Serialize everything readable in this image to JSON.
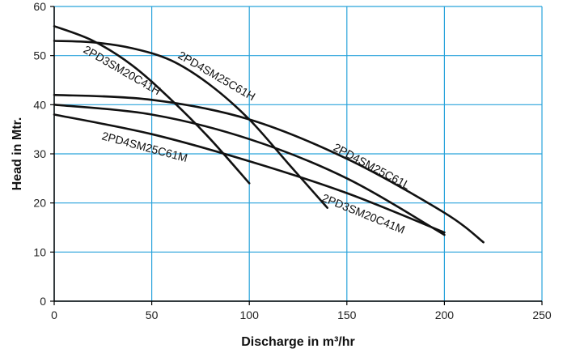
{
  "chart_data": {
    "type": "line",
    "title": "",
    "xlabel": "Discharge in m³/hr",
    "ylabel": "Head in Mtr.",
    "xlim": [
      0,
      250
    ],
    "ylim": [
      0,
      60
    ],
    "xticks": [
      0,
      50,
      100,
      150,
      200,
      250
    ],
    "yticks": [
      0,
      10,
      20,
      30,
      40,
      50,
      60
    ],
    "grid": true,
    "grid_color": "#29a3db",
    "line_color": "#111111",
    "series": [
      {
        "name": "2PD3SM20C41H",
        "x": [
          0,
          20,
          40,
          60,
          80,
          100
        ],
        "y": [
          56,
          53,
          48,
          41,
          33,
          24
        ]
      },
      {
        "name": "2PD4SM25C61H",
        "x": [
          0,
          20,
          40,
          60,
          80,
          100,
          120,
          140
        ],
        "y": [
          53,
          52.7,
          51.5,
          49,
          44,
          37,
          28,
          19
        ]
      },
      {
        "name": "2PD4SM25C61L",
        "x": [
          0,
          50,
          100,
          150,
          200,
          220
        ],
        "y": [
          42,
          41,
          37,
          29,
          18,
          12
        ]
      },
      {
        "name": "2PD3SM20C41M",
        "x": [
          0,
          50,
          100,
          150,
          200
        ],
        "y": [
          40,
          38,
          33,
          25,
          13.5
        ]
      },
      {
        "name": "2PD4SM25C61M",
        "x": [
          0,
          50,
          100,
          150,
          200
        ],
        "y": [
          38,
          34,
          28.5,
          22,
          14
        ]
      }
    ],
    "annotations": [
      {
        "series": "2PD3SM20C41H",
        "text": "2PD3SM20C41H"
      },
      {
        "series": "2PD4SM25C61H",
        "text": "2PD4SM25C61H"
      },
      {
        "series": "2PD4SM25C61L",
        "text": "2PD4SM25C61L"
      },
      {
        "series": "2PD3SM20C41M",
        "text": "2PD3SM20C41M"
      },
      {
        "series": "2PD4SM25C61M",
        "text": "2PD4SM25C61M"
      }
    ]
  }
}
